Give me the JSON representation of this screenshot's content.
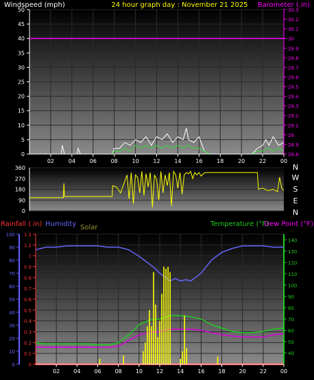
{
  "colors": {
    "background": "#000000",
    "wind_label": "#ffffff",
    "title": "#ffff00",
    "barometer": "#ff00ff",
    "gust": "#ffffff",
    "wind": "#33dd33",
    "direction": "#ffff00",
    "rain": "#ff3333",
    "humidity": "#6666ff",
    "solar": "#ffff00",
    "solar_label": "#999933",
    "temperature": "#22cc22",
    "dewpoint": "#dd00dd"
  },
  "chart_data": [
    {
      "type": "line",
      "id": "wind_barometer",
      "title": "24 hour graph day : November 21 2025",
      "ylabel": "Windspeed (mph)",
      "y2label": "Barometer (.in)",
      "ylim": [
        0,
        50
      ],
      "yticks": [
        "0",
        "5",
        "10",
        "15",
        "20",
        "25",
        "30",
        "35",
        "40",
        "45",
        "50"
      ],
      "y2lim": [
        28.8,
        30.3
      ],
      "y2ticks": [
        "28.8",
        "28.9",
        "29",
        "29.1",
        "29.2",
        "29.3",
        "29.4",
        "29.5",
        "29.6",
        "29.7",
        "29.8",
        "29.9",
        "30",
        "30.1",
        "30.2",
        "30.3"
      ],
      "xlim": [
        0,
        24
      ],
      "xticks": [
        "02",
        "04",
        "06",
        "08",
        "10",
        "12",
        "14",
        "16",
        "18",
        "20",
        "22",
        "00"
      ],
      "xtick_values": [
        2,
        4,
        6,
        8,
        10,
        12,
        14,
        16,
        18,
        20,
        22,
        24
      ],
      "grid": true,
      "series": [
        {
          "role": "barometer",
          "x": [
            0,
            24
          ],
          "values": [
            30.0,
            30.0
          ]
        },
        {
          "role": "gust",
          "x": [
            0,
            2,
            3.0,
            3.1,
            3.3,
            3.4,
            4.5,
            4.6,
            4.8,
            7.8,
            8.0,
            8.5,
            9.0,
            9.5,
            10.0,
            10.5,
            11.0,
            11.5,
            12.0,
            12.5,
            13.0,
            13.5,
            14.0,
            14.5,
            14.8,
            15.0,
            15.5,
            16.0,
            16.5,
            17.0,
            18.0,
            21.0,
            21.5,
            22.0,
            22.3,
            22.6,
            23.0,
            23.5,
            24.0
          ],
          "values": [
            0,
            0,
            0,
            3,
            0,
            0,
            0,
            2,
            0,
            0,
            2,
            2,
            4,
            3,
            5,
            4,
            6,
            3,
            6,
            5,
            7,
            4,
            6,
            5,
            9,
            5,
            4,
            6,
            1,
            0,
            0,
            0,
            2,
            3,
            5,
            3,
            6,
            3,
            4
          ]
        },
        {
          "role": "wind",
          "x": [
            0,
            7.8,
            8.0,
            8.5,
            9.0,
            9.5,
            10.0,
            10.5,
            11.0,
            11.5,
            12.0,
            12.5,
            13.0,
            13.5,
            14.0,
            14.5,
            15.0,
            15.5,
            16.0,
            16.5,
            17.0,
            21.0,
            21.5,
            22.0,
            22.5,
            23.0,
            23.5,
            24.0
          ],
          "values": [
            0,
            0,
            1,
            1,
            2,
            1,
            3,
            2,
            3,
            2,
            3,
            2,
            3,
            2,
            3,
            2,
            3,
            2,
            2,
            1,
            0,
            0,
            1,
            1,
            2,
            1,
            2,
            1
          ]
        }
      ]
    },
    {
      "type": "line",
      "id": "wind_direction",
      "ylim": [
        0,
        360
      ],
      "yticks": [
        "0",
        "90",
        "180",
        "270",
        "360"
      ],
      "compass": [
        "N",
        "W",
        "S",
        "E",
        "N"
      ],
      "xlim": [
        0,
        24
      ],
      "series": [
        {
          "role": "direction",
          "x": [
            0,
            3.2,
            3.25,
            3.3,
            7.8,
            7.85,
            8.2,
            8.6,
            9.0,
            9.2,
            9.4,
            9.6,
            9.8,
            10.0,
            10.2,
            10.4,
            10.6,
            10.8,
            11.0,
            11.2,
            11.4,
            11.6,
            11.8,
            12.0,
            12.2,
            12.4,
            12.6,
            12.8,
            13.0,
            13.2,
            13.4,
            13.6,
            13.8,
            14.0,
            14.2,
            14.4,
            14.6,
            14.8,
            15.0,
            15.2,
            15.4,
            15.6,
            15.8,
            16.0,
            16.2,
            16.4,
            16.6,
            17.0,
            21.5,
            21.6,
            22.0,
            22.5,
            23.0,
            23.4,
            23.6,
            23.8,
            24.0
          ],
          "values": [
            110,
            110,
            230,
            120,
            120,
            210,
            200,
            150,
            250,
            300,
            100,
            320,
            60,
            300,
            280,
            150,
            330,
            130,
            310,
            200,
            320,
            30,
            300,
            260,
            90,
            330,
            150,
            300,
            210,
            320,
            40,
            330,
            300,
            190,
            320,
            140,
            300,
            320,
            310,
            330,
            270,
            320,
            300,
            320,
            290,
            310,
            320,
            320,
            320,
            180,
            190,
            170,
            180,
            160,
            280,
            190,
            170
          ]
        }
      ]
    },
    {
      "type": "line",
      "id": "rain_humidity_temperature",
      "labels": {
        "rain": "Rainfall (.in)",
        "humidity": "Humidity",
        "solar": "Solar",
        "temperature": "Temperature (°F)",
        "dewpoint": "Dew Point (°F)"
      },
      "rain_ylim": [
        0,
        1.2
      ],
      "rain_ticks": [
        "0",
        "0.1",
        "0.2",
        "0.3",
        "0.4",
        "0.5",
        "0.6",
        "0.7",
        "0.8",
        "0.9",
        "1",
        "1.1",
        "1.2"
      ],
      "humidity_ylim": [
        0,
        100
      ],
      "humidity_ticks": [
        "0",
        "10",
        "20",
        "30",
        "40",
        "50",
        "60",
        "70",
        "80",
        "90",
        "100"
      ],
      "temp_ylim": [
        30,
        145
      ],
      "temp_ticks": [
        "40",
        "50",
        "60",
        "70",
        "80",
        "90",
        "100",
        "110",
        "120",
        "130",
        "140"
      ],
      "xlim": [
        0,
        24
      ],
      "xticks": [
        "02",
        "04",
        "06",
        "08",
        "10",
        "12",
        "14",
        "16",
        "18",
        "20",
        "22",
        "00"
      ],
      "xtick_values": [
        2,
        4,
        6,
        8,
        10,
        12,
        14,
        16,
        18,
        20,
        22,
        24
      ],
      "grid": true,
      "series": [
        {
          "role": "rain",
          "x": [
            0,
            24
          ],
          "values": [
            0,
            0
          ]
        },
        {
          "role": "humidity",
          "x": [
            0,
            1,
            2,
            3,
            4,
            5,
            6,
            7,
            8,
            9,
            10,
            10.5,
            11,
            11.5,
            12,
            12.5,
            13,
            13.5,
            14,
            14.5,
            15,
            15.5,
            16,
            17,
            18,
            19,
            20,
            21,
            22,
            23,
            24
          ],
          "values": [
            88,
            90,
            90,
            91,
            91,
            91,
            91,
            90,
            90,
            88,
            83,
            80,
            77,
            74,
            70,
            67,
            64,
            66,
            64,
            65,
            64,
            67,
            70,
            80,
            86,
            89,
            91,
            91,
            91,
            90,
            90
          ]
        },
        {
          "role": "temperature",
          "x": [
            0,
            1,
            2,
            3,
            4,
            5,
            6,
            7,
            8,
            9,
            10,
            11,
            12,
            13,
            14,
            15,
            16,
            17,
            18,
            19,
            20,
            21,
            22,
            23,
            24
          ],
          "values": [
            49,
            48,
            48,
            48,
            48,
            48,
            47,
            47,
            49,
            56,
            65,
            69,
            70,
            73,
            73,
            72,
            70,
            65,
            62,
            59,
            58,
            58,
            59,
            61,
            62
          ]
        },
        {
          "role": "dewpoint",
          "x": [
            0,
            1,
            2,
            3,
            4,
            5,
            6,
            7,
            8,
            9,
            10,
            11,
            12,
            13,
            14,
            15,
            16,
            17,
            18,
            19,
            20,
            21,
            22,
            23,
            24
          ],
          "values": [
            45,
            45,
            45,
            45,
            45,
            45,
            45,
            45,
            46,
            51,
            56,
            58,
            59,
            61,
            61,
            61,
            60,
            58,
            56,
            55,
            54,
            54,
            54,
            56,
            57
          ]
        },
        {
          "role": "solar",
          "x": [
            6.2,
            8.5,
            10.4,
            10.6,
            10.8,
            11.0,
            11.2,
            11.4,
            11.6,
            11.8,
            12.0,
            12.2,
            12.4,
            12.6,
            12.8,
            13.0,
            14.0,
            14.2,
            14.4,
            14.6,
            17.6
          ],
          "values": [
            0.05,
            0.08,
            0.12,
            0.2,
            0.35,
            0.5,
            0.35,
            0.85,
            0.55,
            0.25,
            0.4,
            0.65,
            0.9,
            0.88,
            0.9,
            0.85,
            0.05,
            0.12,
            0.45,
            0.15,
            0.07
          ]
        }
      ]
    }
  ]
}
